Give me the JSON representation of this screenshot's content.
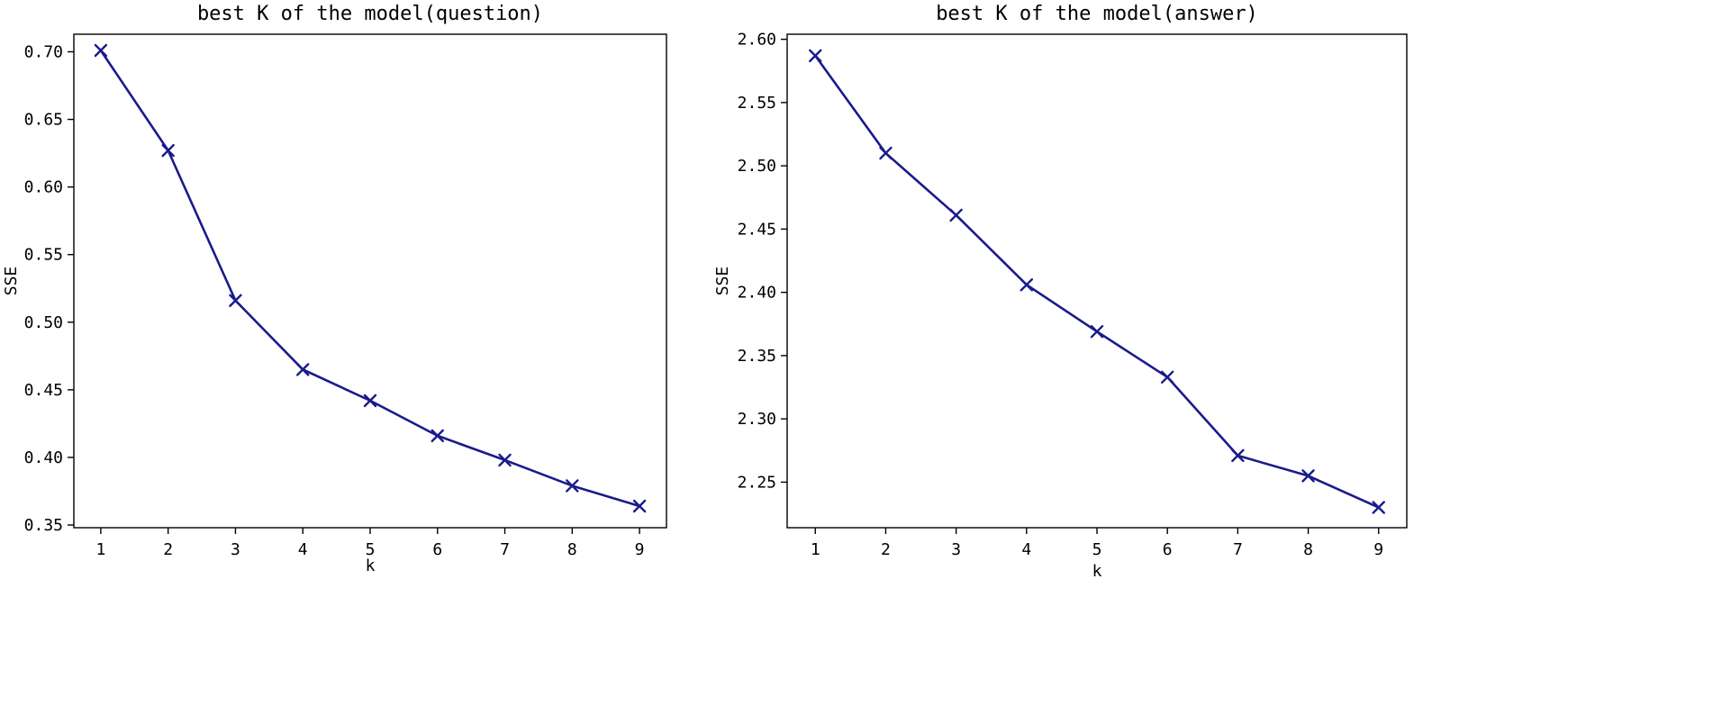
{
  "chart_data": [
    {
      "type": "line",
      "title": "best K of the model(question)",
      "xlabel": "k",
      "ylabel": "SSE",
      "x": [
        1,
        2,
        3,
        4,
        5,
        6,
        7,
        8,
        9
      ],
      "series": [
        {
          "values": [
            0.701,
            0.627,
            0.516,
            0.465,
            0.442,
            0.416,
            0.398,
            0.379,
            0.364
          ],
          "color": "#1a1a8c",
          "marker": "x"
        }
      ],
      "xlim": [
        0.6,
        9.4
      ],
      "ylim": [
        0.348,
        0.713
      ],
      "xticks": [
        1,
        2,
        3,
        4,
        5,
        6,
        7,
        8,
        9
      ],
      "xtick_labels": [
        "1",
        "2",
        "3",
        "4",
        "5",
        "6",
        "7",
        "8",
        "9"
      ],
      "yticks": [
        0.35,
        0.4,
        0.45,
        0.5,
        0.55,
        0.6,
        0.65,
        0.7
      ],
      "ytick_labels": [
        "0.35",
        "0.40",
        "0.45",
        "0.50",
        "0.55",
        "0.60",
        "0.65",
        "0.70"
      ],
      "grid": false,
      "legend": false
    },
    {
      "type": "line",
      "title": "best K of the model(answer)",
      "xlabel": "k",
      "ylabel": "SSE",
      "x": [
        1,
        2,
        3,
        4,
        5,
        6,
        7,
        8,
        9
      ],
      "series": [
        {
          "values": [
            2.587,
            2.51,
            2.461,
            2.406,
            2.369,
            2.333,
            2.271,
            2.255,
            2.23
          ],
          "color": "#1a1a8c",
          "marker": "x"
        }
      ],
      "xlim": [
        0.6,
        9.4
      ],
      "ylim": [
        2.214,
        2.604
      ],
      "xticks": [
        1,
        2,
        3,
        4,
        5,
        6,
        7,
        8,
        9
      ],
      "xtick_labels": [
        "1",
        "2",
        "3",
        "4",
        "5",
        "6",
        "7",
        "8",
        "9"
      ],
      "yticks": [
        2.25,
        2.3,
        2.35,
        2.4,
        2.45,
        2.5,
        2.55,
        2.6
      ],
      "ytick_labels": [
        "2.25",
        "2.30",
        "2.35",
        "2.40",
        "2.45",
        "2.50",
        "2.55",
        "2.60"
      ],
      "grid": false,
      "legend": false
    }
  ]
}
